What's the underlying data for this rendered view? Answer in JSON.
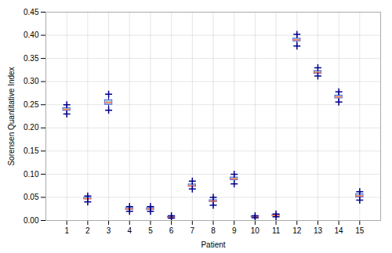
{
  "chart_data": {
    "type": "box",
    "xlabel": "Patient",
    "ylabel": "Sorensen Quantitative Index",
    "x": [
      1,
      2,
      3,
      4,
      5,
      6,
      7,
      8,
      9,
      10,
      11,
      12,
      13,
      14,
      15
    ],
    "medians": [
      0.24,
      0.047,
      0.255,
      0.025,
      0.025,
      0.007,
      0.075,
      0.042,
      0.09,
      0.008,
      0.011,
      0.39,
      0.32,
      0.267,
      0.053
    ],
    "q1": [
      0.237,
      0.046,
      0.25,
      0.023,
      0.023,
      0.006,
      0.073,
      0.04,
      0.087,
      0.007,
      0.01,
      0.387,
      0.317,
      0.264,
      0.05
    ],
    "q3": [
      0.243,
      0.049,
      0.26,
      0.027,
      0.027,
      0.008,
      0.078,
      0.044,
      0.093,
      0.009,
      0.012,
      0.393,
      0.323,
      0.27,
      0.057
    ],
    "whislo": [
      0.23,
      0.04,
      0.238,
      0.02,
      0.02,
      0.005,
      0.068,
      0.033,
      0.079,
      0.006,
      0.008,
      0.377,
      0.312,
      0.256,
      0.044
    ],
    "whishi": [
      0.25,
      0.053,
      0.273,
      0.03,
      0.03,
      0.01,
      0.085,
      0.05,
      0.1,
      0.01,
      0.014,
      0.402,
      0.33,
      0.278,
      0.062
    ],
    "xlim": [
      0,
      16
    ],
    "xticks": [
      1,
      2,
      3,
      4,
      5,
      6,
      7,
      8,
      9,
      10,
      11,
      12,
      13,
      14,
      15
    ],
    "ylim": [
      0.0,
      0.45
    ],
    "yticks": [
      {
        "value": 0.0,
        "label": "0.00"
      },
      0.05,
      {
        "value": 0.1,
        "label": "0.10"
      },
      0.15,
      {
        "value": 0.2,
        "label": "0.20"
      },
      0.25,
      {
        "value": 0.3,
        "label": "0.30"
      },
      0.35,
      {
        "value": 0.4,
        "label": "0.40"
      },
      0.45
    ],
    "grid": true
  }
}
